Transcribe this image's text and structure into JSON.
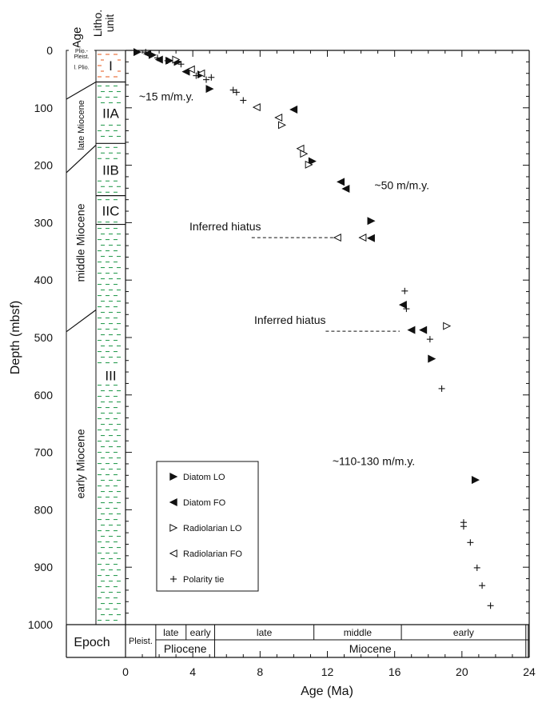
{
  "header": {
    "age_title": "Age",
    "litho_title": [
      "Litho.",
      "unit"
    ]
  },
  "colors": {
    "unit_I": "#e8662e",
    "unit_II_III": "#2e9e55",
    "ink": "#111111"
  },
  "age_labels": [
    {
      "id": "plio-pleist",
      "lines": [
        "Plio.-",
        "Pleist."
      ],
      "depth": 10,
      "size": 7
    },
    {
      "id": "l-plio",
      "lines": [
        "l. Plio."
      ],
      "depth": 38,
      "size": 7
    },
    {
      "id": "late-miocene",
      "lines": [
        "late Miocene"
      ],
      "depth": 130,
      "size": 11
    },
    {
      "id": "middle-miocene",
      "lines": [
        "middle Miocene"
      ],
      "depth": 335,
      "size": 14
    },
    {
      "id": "early-miocene",
      "lines": [
        "early Miocene"
      ],
      "depth": 720,
      "size": 14
    }
  ],
  "litho_units": [
    {
      "label": "I",
      "top": 0,
      "bottom": 55,
      "color_key": "unit_I",
      "label_depth": 25
    },
    {
      "label": "IIA",
      "top": 55,
      "bottom": 162,
      "color_key": "unit_II_III",
      "label_depth": 108
    },
    {
      "label": "IIB",
      "top": 162,
      "bottom": 253,
      "color_key": "unit_II_III",
      "label_depth": 207
    },
    {
      "label": "IIC",
      "top": 253,
      "bottom": 303,
      "color_key": "unit_II_III",
      "label_depth": 278
    },
    {
      "label": "III",
      "top": 303,
      "bottom": 1000,
      "color_key": "unit_II_III",
      "label_depth": 565
    }
  ],
  "epoch_row": {
    "title": "Epoch",
    "subepochs": [
      {
        "label": "Pleist.",
        "start": 0,
        "end": 1.8
      },
      {
        "label": "late",
        "start": 1.8,
        "end": 3.6
      },
      {
        "label": "early",
        "start": 3.6,
        "end": 5.3
      },
      {
        "label": "late",
        "start": 5.3,
        "end": 11.2
      },
      {
        "label": "middle",
        "start": 11.2,
        "end": 16.4
      },
      {
        "label": "early",
        "start": 16.4,
        "end": 23.8
      }
    ],
    "epochs": [
      {
        "label": "Pliocene",
        "start": 1.8,
        "end": 5.3
      },
      {
        "label": "Miocene",
        "start": 5.3,
        "end": 23.8
      }
    ]
  },
  "chart_data": {
    "type": "scatter",
    "xlabel": "Age (Ma)",
    "ylabel": "Depth (mbsf)",
    "xlim": [
      0,
      24
    ],
    "ylim": [
      1000,
      0
    ],
    "x_ticks": [
      0,
      4,
      8,
      12,
      16,
      20,
      24
    ],
    "y_ticks": [
      0,
      100,
      200,
      300,
      400,
      500,
      600,
      700,
      800,
      900,
      1000
    ],
    "legend_position": "lower-left",
    "series": [
      {
        "name": "Diatom LO",
        "marker": "tri-right-filled",
        "points": [
          [
            0.7,
            3
          ],
          [
            1.6,
            8
          ],
          [
            2.6,
            18
          ],
          [
            3.1,
            20
          ],
          [
            4.5,
            42
          ],
          [
            5.0,
            67
          ],
          [
            11.1,
            193
          ],
          [
            14.6,
            297
          ],
          [
            18.2,
            537
          ],
          [
            20.8,
            748
          ]
        ]
      },
      {
        "name": "Diatom FO",
        "marker": "tri-left-filled",
        "points": [
          [
            1.3,
            6
          ],
          [
            2.0,
            16
          ],
          [
            3.6,
            37
          ],
          [
            10.0,
            103
          ],
          [
            12.8,
            229
          ],
          [
            13.1,
            241
          ],
          [
            14.6,
            327
          ],
          [
            16.5,
            443
          ],
          [
            17.0,
            487
          ],
          [
            17.7,
            487
          ]
        ]
      },
      {
        "name": "Radiolarian LO",
        "marker": "tri-right-open",
        "points": [
          [
            3.0,
            16
          ],
          [
            9.3,
            130
          ],
          [
            10.6,
            180
          ],
          [
            10.9,
            199
          ],
          [
            19.1,
            480
          ]
        ]
      },
      {
        "name": "Radiolarian FO",
        "marker": "tri-left-open",
        "points": [
          [
            3.9,
            33
          ],
          [
            4.5,
            40
          ],
          [
            7.8,
            99
          ],
          [
            9.1,
            117
          ],
          [
            10.4,
            171
          ],
          [
            12.6,
            326
          ],
          [
            14.1,
            326
          ]
        ]
      },
      {
        "name": "Polarity tie",
        "marker": "plus",
        "points": [
          [
            1.2,
            3
          ],
          [
            1.9,
            13
          ],
          [
            2.5,
            18
          ],
          [
            3.3,
            24
          ],
          [
            4.2,
            44
          ],
          [
            4.8,
            51
          ],
          [
            5.1,
            47
          ],
          [
            6.4,
            69
          ],
          [
            6.6,
            73
          ],
          [
            7.0,
            87
          ],
          [
            16.6,
            419
          ],
          [
            16.7,
            450
          ],
          [
            18.1,
            503
          ],
          [
            18.8,
            589
          ],
          [
            20.1,
            822
          ],
          [
            20.1,
            829
          ],
          [
            20.5,
            857
          ],
          [
            20.9,
            901
          ],
          [
            21.2,
            932
          ],
          [
            21.7,
            967
          ]
        ]
      }
    ],
    "hiatuses": [
      {
        "label": "Inferred hiatus",
        "depth": 326,
        "x_start": 7.5,
        "x_end": 12.5
      },
      {
        "label": "Inferred hiatus",
        "depth": 489,
        "x_start": 11.9,
        "x_end": 16.3
      }
    ],
    "annotations": [
      {
        "text": "~15 m/m.y.",
        "x": 0.8,
        "y": 80
      },
      {
        "text": "~50 m/m.y.",
        "x": 14.8,
        "y": 235
      },
      {
        "text": "~110-130 m/m.y.",
        "x": 12.3,
        "y": 715
      }
    ]
  }
}
